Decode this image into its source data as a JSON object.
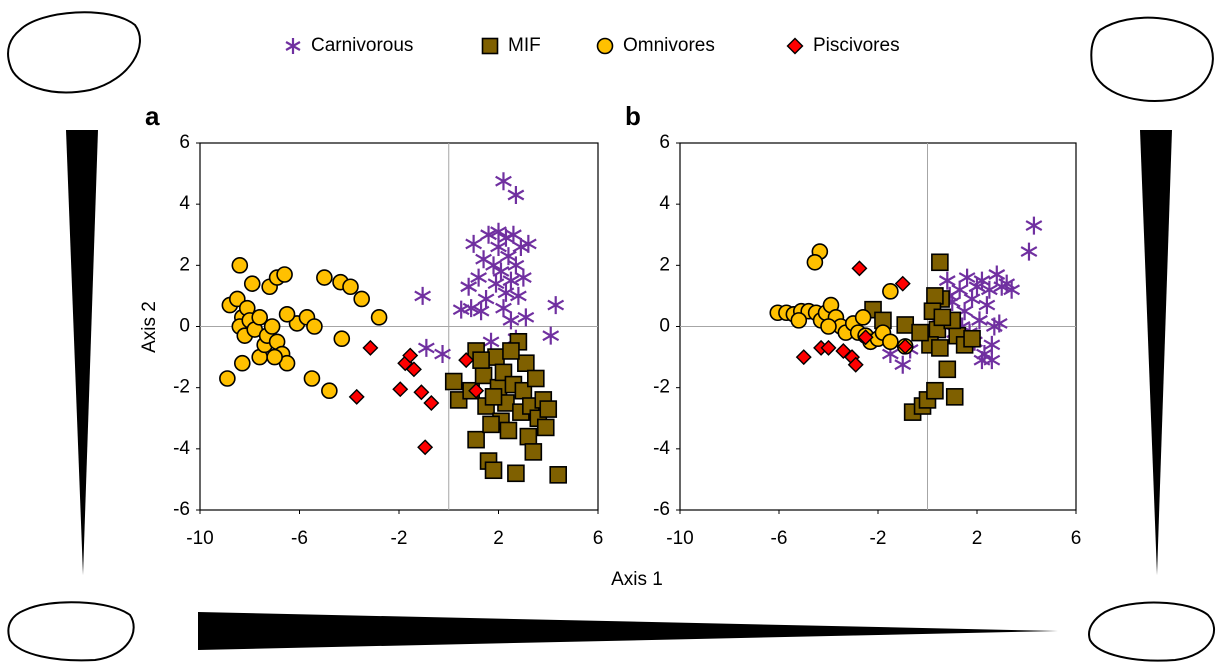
{
  "chart_data": [
    {
      "type": "scatter",
      "panel_label": "a",
      "x_label": "Axis 1",
      "y_label": "Axis 2",
      "xlim": [
        -10,
        6
      ],
      "ylim": [
        -6,
        6
      ],
      "xticks": [
        -10,
        -6,
        -2,
        2,
        6
      ],
      "yticks": [
        -6,
        -4,
        -2,
        0,
        2,
        4,
        6
      ],
      "zero_lines": true,
      "series": [
        {
          "name": "Carnivorous",
          "color": "#7030a0",
          "marker": "asterisk",
          "x": [
            2.2,
            2.7,
            -1.05,
            -0.9,
            -0.25,
            4.3,
            4.1,
            0.5,
            0.8,
            1.0,
            1.2,
            1.4,
            1.5,
            1.6,
            1.8,
            1.9,
            2.0,
            2.0,
            2.1,
            2.2,
            2.3,
            2.4,
            2.5,
            2.5,
            2.6,
            2.7,
            2.8,
            2.9,
            3.0,
            3.1,
            3.2,
            1.3,
            1.7,
            2.3,
            2.7,
            0.9
          ],
          "y": [
            4.75,
            4.3,
            1.0,
            -0.7,
            -0.9,
            0.7,
            -0.3,
            0.55,
            1.3,
            2.7,
            1.6,
            2.2,
            0.9,
            3.0,
            2.0,
            1.4,
            3.1,
            2.6,
            1.8,
            0.6,
            2.9,
            2.3,
            1.5,
            0.2,
            3.0,
            2.0,
            1.0,
            2.6,
            1.6,
            0.3,
            2.7,
            0.5,
            -0.5,
            1.1,
            -0.4,
            0.6
          ]
        },
        {
          "name": "MIF",
          "color": "#7f6000",
          "marker": "square",
          "x": [
            1.1,
            0.2,
            0.4,
            0.9,
            1.1,
            1.4,
            1.5,
            1.6,
            1.8,
            1.9,
            2.0,
            2.1,
            2.2,
            2.3,
            2.4,
            2.6,
            2.7,
            2.8,
            2.9,
            3.0,
            3.1,
            3.2,
            3.3,
            3.5,
            3.6,
            3.8,
            3.9,
            4.0,
            4.4,
            1.3,
            2.5,
            1.8,
            3.4,
            1.7
          ],
          "y": [
            -0.8,
            -1.8,
            -2.4,
            -2.1,
            -3.7,
            -1.6,
            -2.6,
            -4.4,
            -4.7,
            -1.0,
            -2.0,
            -3.1,
            -1.5,
            -2.5,
            -3.4,
            -1.9,
            -4.8,
            -0.5,
            -2.8,
            -2.1,
            -1.2,
            -3.6,
            -2.6,
            -1.7,
            -3.0,
            -2.4,
            -3.3,
            -2.7,
            -4.85,
            -1.1,
            -0.8,
            -2.3,
            -4.1,
            -3.2
          ]
        },
        {
          "name": "Omnivores",
          "color": "#ffc000",
          "marker": "circle",
          "x": [
            -8.9,
            -8.4,
            -8.8,
            -8.5,
            -8.3,
            -8.4,
            -8.2,
            -8.3,
            -8.1,
            -7.9,
            -8.0,
            -7.8,
            -7.6,
            -7.4,
            -7.3,
            -7.2,
            -6.9,
            -6.6,
            -7.1,
            -6.9,
            -6.7,
            -6.5,
            -5.5,
            -6.1,
            -5.7,
            -5.4,
            -5.0,
            -4.35,
            -3.95,
            -3.5,
            -2.8,
            -4.8,
            -4.3,
            -6.5,
            -7.6,
            -7.0
          ],
          "y": [
            -1.7,
            2.0,
            0.7,
            0.9,
            0.3,
            0.0,
            -0.3,
            -1.2,
            0.6,
            1.4,
            0.2,
            -0.1,
            -1.0,
            -0.6,
            -0.3,
            1.3,
            1.6,
            1.7,
            0.0,
            -0.5,
            -0.9,
            -1.2,
            -1.7,
            0.1,
            0.3,
            0.0,
            1.6,
            1.45,
            1.3,
            0.9,
            0.3,
            -2.1,
            -0.4,
            0.4,
            0.3,
            -1.0
          ]
        },
        {
          "name": "Piscivores",
          "color": "#ff0000",
          "marker": "diamond",
          "x": [
            -3.15,
            -3.7,
            -1.95,
            -1.75,
            -1.55,
            -1.4,
            -1.1,
            -0.7,
            -0.95,
            0.7,
            1.1
          ],
          "y": [
            -0.7,
            -2.3,
            -2.05,
            -1.2,
            -0.95,
            -1.4,
            -2.15,
            -2.5,
            -3.95,
            -1.1,
            -2.1
          ]
        }
      ]
    },
    {
      "type": "scatter",
      "panel_label": "b",
      "xlim": [
        -10,
        6
      ],
      "ylim": [
        -6,
        6
      ],
      "xticks": [
        -10,
        -6,
        -2,
        2,
        6
      ],
      "yticks": [
        -6,
        -4,
        -2,
        0,
        2,
        4,
        6
      ],
      "zero_lines": true,
      "series": [
        {
          "color": "#7030a0",
          "marker": "asterisk",
          "x": [
            4.3,
            4.1,
            -1.5,
            -1.0,
            -0.7,
            0.5,
            0.8,
            1.0,
            1.1,
            1.3,
            1.5,
            1.6,
            1.8,
            1.9,
            2.0,
            2.1,
            2.2,
            2.3,
            2.4,
            2.5,
            2.6,
            2.7,
            2.8,
            3.0,
            3.2,
            3.4,
            2.2,
            2.6,
            1.4,
            2.9,
            0.9,
            1.7
          ],
          "y": [
            3.3,
            2.45,
            -0.9,
            -1.25,
            -0.75,
            0.3,
            1.5,
            0.8,
            -0.2,
            1.2,
            0.5,
            1.6,
            0.9,
            -0.5,
            1.3,
            0.2,
            1.5,
            -0.9,
            0.7,
            1.2,
            -1.1,
            0.0,
            1.7,
            1.3,
            1.4,
            1.2,
            -1.1,
            -0.6,
            0.0,
            0.1,
            1.0,
            -0.2
          ]
        },
        {
          "color": "#7f6000",
          "marker": "square",
          "x": [
            0.5,
            0.55,
            0.3,
            0.2,
            0.4,
            0.1,
            0.5,
            0.8,
            -0.6,
            -0.2,
            0.0,
            0.3,
            1.1,
            -0.9,
            -2.2,
            1.2,
            1.5,
            1.0,
            -0.3,
            0.6,
            1.8,
            -1.8
          ],
          "y": [
            2.1,
            0.9,
            1.0,
            0.5,
            -0.1,
            -0.6,
            -0.7,
            -1.4,
            -2.8,
            -2.6,
            -2.4,
            -2.1,
            -2.3,
            0.05,
            0.55,
            -0.3,
            -0.6,
            0.2,
            -0.2,
            0.3,
            -0.4,
            0.2
          ]
        },
        {
          "color": "#ffc000",
          "marker": "circle",
          "x": [
            -6.05,
            -5.7,
            -5.4,
            -5.1,
            -4.8,
            -4.5,
            -4.3,
            -4.1,
            -3.9,
            -3.7,
            -3.5,
            -3.3,
            -3.0,
            -2.8,
            -2.5,
            -2.3,
            -2.0,
            -1.8,
            -1.5,
            -1.5,
            -0.9,
            -4.35,
            -4.55,
            -5.2,
            -4.0,
            -2.6
          ],
          "y": [
            0.45,
            0.45,
            0.4,
            0.5,
            0.5,
            0.45,
            0.2,
            0.45,
            0.7,
            0.3,
            0.0,
            -0.2,
            0.1,
            -0.2,
            -0.3,
            -0.5,
            -0.4,
            -0.2,
            -0.5,
            1.15,
            -0.65,
            2.45,
            2.1,
            0.2,
            0.0,
            0.3
          ]
        },
        {
          "color": "#ff0000",
          "marker": "diamond",
          "x": [
            -5.0,
            -4.3,
            -4.0,
            -3.4,
            -3.05,
            -2.9,
            -2.5,
            -2.75,
            -1.0,
            -0.9
          ],
          "y": [
            -1.0,
            -0.7,
            -0.7,
            -0.8,
            -1.0,
            -1.25,
            -0.35,
            1.9,
            1.4,
            -0.65
          ]
        }
      ]
    }
  ]
}
